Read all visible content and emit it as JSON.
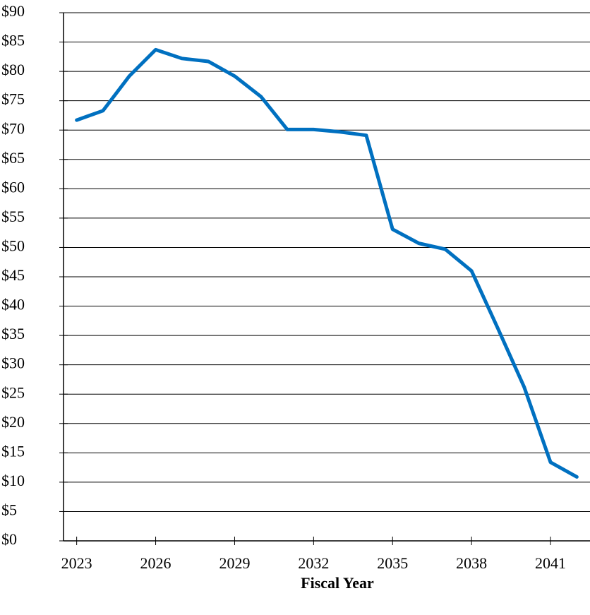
{
  "chart_data": {
    "type": "line",
    "x_label": "Fiscal Year",
    "x": [
      2023,
      2024,
      2025,
      2026,
      2027,
      2028,
      2029,
      2030,
      2031,
      2032,
      2033,
      2034,
      2035,
      2036,
      2037,
      2038,
      2039,
      2040,
      2041,
      2042
    ],
    "series": [
      {
        "color": "#0070c0",
        "values": [
          71.7,
          73.3,
          79.2,
          83.7,
          82.2,
          81.7,
          79.2,
          75.7,
          70.1,
          70.1,
          69.7,
          69.1,
          53.1,
          50.7,
          49.7,
          46.0,
          36.2,
          26.2,
          13.4,
          10.9
        ]
      }
    ],
    "xlim": [
      2022.5,
      2042.5
    ],
    "xticks": [
      2023,
      2026,
      2029,
      2032,
      2035,
      2038,
      2041
    ],
    "ylim": [
      0,
      90
    ],
    "yticks": [
      {
        "value": 0,
        "label": "$0"
      },
      {
        "value": 5,
        "label": "$5"
      },
      {
        "value": 10,
        "label": "$10"
      },
      {
        "value": 15,
        "label": "$15"
      },
      {
        "value": 20,
        "label": "$20"
      },
      {
        "value": 25,
        "label": "$25"
      },
      {
        "value": 30,
        "label": "$30"
      },
      {
        "value": 35,
        "label": "$35"
      },
      {
        "value": 40,
        "label": "$40"
      },
      {
        "value": 45,
        "label": "$45"
      },
      {
        "value": 50,
        "label": "$50"
      },
      {
        "value": 55,
        "label": "$55"
      },
      {
        "value": 60,
        "label": "$60"
      },
      {
        "value": 65,
        "label": "$65"
      },
      {
        "value": 70,
        "label": "$70"
      },
      {
        "value": 75,
        "label": "$75"
      },
      {
        "value": 80,
        "label": "$80"
      },
      {
        "value": 85,
        "label": "$85"
      },
      {
        "value": 90,
        "label": "$90"
      }
    ],
    "grid": true
  }
}
